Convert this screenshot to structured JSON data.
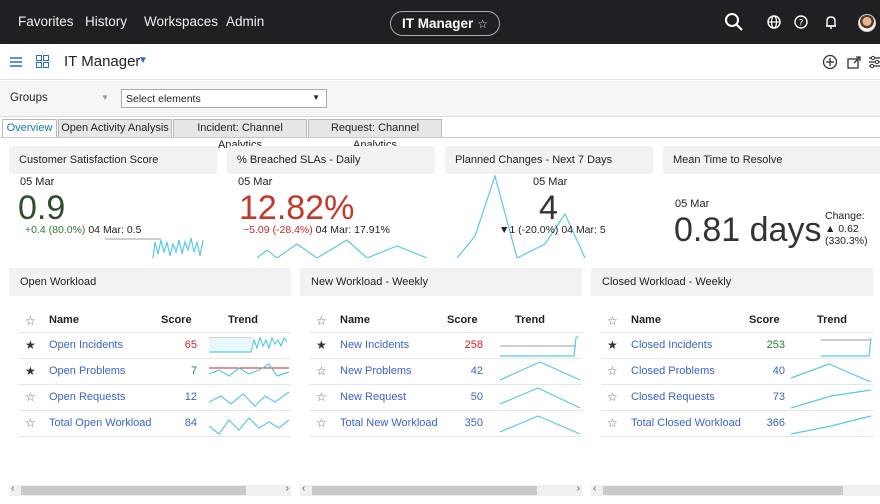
{
  "topnav": {
    "items": [
      "Favorites",
      "History",
      "Workspaces",
      "Admin"
    ],
    "pill": "IT Manager",
    "pill_star": "☆"
  },
  "appbar": {
    "title": "IT Manager"
  },
  "filters": {
    "groups_label": "Groups",
    "select_value": "Select elements"
  },
  "tabs": [
    "Overview",
    "Open Activity Analysis",
    "Incident: Channel Analytics",
    "Request: Channel Analytics"
  ],
  "kpis": {
    "csat": {
      "title": "Customer Satisfaction Score",
      "date": "05 Mar",
      "value": "0.9",
      "change": "+0.4 (80.0%)",
      "prev": "04 Mar: 0.5"
    },
    "sla": {
      "title": "% Breached SLAs - Daily",
      "date": "05 Mar",
      "value": "12.82%",
      "change": "−5.09 (-28.4%)",
      "prev": "04 Mar: 17.91%"
    },
    "changes": {
      "title": "Planned Changes - Next 7 Days",
      "date": "05 Mar",
      "value": "4",
      "change": "▼1 (-20.0%)",
      "prev": "04 Mar: 5"
    },
    "mttr": {
      "title": "Mean Time to Resolve",
      "date": "05 Mar",
      "value": "0.81 days",
      "change_label": "Change:",
      "change_value": "▲ 0.62",
      "change_pct": "(330.3%)"
    }
  },
  "workload": {
    "headers": {
      "name": "Name",
      "score": "Score",
      "trend": "Trend"
    },
    "panels": [
      {
        "title": "Open Workload",
        "rows": [
          {
            "name": "Open Incidents",
            "score": "65",
            "star": "★",
            "score_color": "#c62828"
          },
          {
            "name": "Open Problems",
            "score": "7",
            "star": "★",
            "score_color": "#2e7d32"
          },
          {
            "name": "Open Requests",
            "score": "12",
            "star": "☆",
            "score_color": "#3a63c8"
          },
          {
            "name": "Total Open Workload",
            "score": "84",
            "star": "☆",
            "score_color": "#3a63c8"
          }
        ]
      },
      {
        "title": "New Workload - Weekly",
        "rows": [
          {
            "name": "New Incidents",
            "score": "258",
            "star": "★",
            "score_color": "#c62828"
          },
          {
            "name": "New Problems",
            "score": "42",
            "star": "☆",
            "score_color": "#3a63c8"
          },
          {
            "name": "New Request",
            "score": "50",
            "star": "☆",
            "score_color": "#3a63c8"
          },
          {
            "name": "Total New Workload",
            "score": "350",
            "star": "☆",
            "score_color": "#3a63c8"
          }
        ]
      },
      {
        "title": "Closed Workload - Weekly",
        "rows": [
          {
            "name": "Closed Incidents",
            "score": "253",
            "star": "★",
            "score_color": "#2e7d32"
          },
          {
            "name": "Closed Problems",
            "score": "40",
            "star": "☆",
            "score_color": "#3a63c8"
          },
          {
            "name": "Closed Requests",
            "score": "73",
            "star": "☆",
            "score_color": "#3a63c8"
          },
          {
            "name": "Total Closed Workload",
            "score": "366",
            "star": "☆",
            "score_color": "#3a63c8"
          }
        ]
      }
    ]
  },
  "colors": {
    "accent": "#3a63c8",
    "sparkline": "#5bc8e6",
    "up": "#2e7d32",
    "down": "#c62828"
  }
}
